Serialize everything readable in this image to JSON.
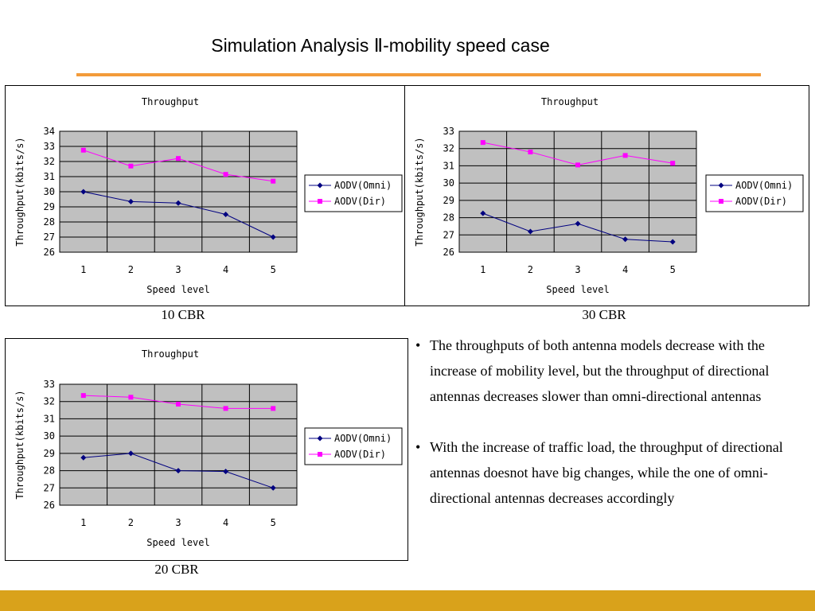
{
  "slide": {
    "title": "Simulation Analysis Ⅱ-mobility speed case",
    "accent_color": "#f39b3a",
    "footer_color": "#d9a21b"
  },
  "bullets": [
    "The throughputs of both antenna models decrease with the increase of mobility level, but the throughput of directional antennas decreases slower than omni-directional antennas",
    "With the increase of traffic load, the throughput of directional antennas doesnot have big changes, while the one of omni-directional antennas decreases accordingly"
  ],
  "chart_data": [
    {
      "type": "line",
      "caption": "10 CBR",
      "title": "Throughput",
      "xlabel": "Speed level",
      "ylabel": "Throughput(kbits/s)",
      "categories": [
        "1",
        "2",
        "3",
        "4",
        "5"
      ],
      "ylim": [
        26,
        34
      ],
      "yticks": [
        "26",
        "27",
        "28",
        "29",
        "30",
        "31",
        "32",
        "33",
        "34"
      ],
      "grid": true,
      "legend": "right",
      "series": [
        {
          "name": "AODV(Omni)",
          "color": "#000080",
          "marker": "diamond",
          "values": [
            30.0,
            29.35,
            29.25,
            28.5,
            27.0
          ]
        },
        {
          "name": "AODV(Dir)",
          "color": "#ff00ff",
          "marker": "square",
          "values": [
            32.75,
            31.7,
            32.2,
            31.15,
            30.7
          ]
        }
      ]
    },
    {
      "type": "line",
      "caption": "30 CBR",
      "title": "Throughput",
      "xlabel": "Speed level",
      "ylabel": "Throughput(kbits/s)",
      "categories": [
        "1",
        "2",
        "3",
        "4",
        "5"
      ],
      "ylim": [
        26,
        33
      ],
      "yticks": [
        "26",
        "27",
        "28",
        "29",
        "30",
        "31",
        "32",
        "33"
      ],
      "grid": true,
      "legend": "right",
      "series": [
        {
          "name": "AODV(Omni)",
          "color": "#000080",
          "marker": "diamond",
          "values": [
            28.25,
            27.2,
            27.65,
            26.75,
            26.6
          ]
        },
        {
          "name": "AODV(Dir)",
          "color": "#ff00ff",
          "marker": "square",
          "values": [
            32.35,
            31.8,
            31.05,
            31.6,
            31.15
          ]
        }
      ]
    },
    {
      "type": "line",
      "caption": "20 CBR",
      "title": "Throughput",
      "xlabel": "Speed level",
      "ylabel": "Throughput(kbits/s)",
      "categories": [
        "1",
        "2",
        "3",
        "4",
        "5"
      ],
      "ylim": [
        26,
        33
      ],
      "yticks": [
        "26",
        "27",
        "28",
        "29",
        "30",
        "31",
        "32",
        "33"
      ],
      "grid": true,
      "legend": "right",
      "series": [
        {
          "name": "AODV(Omni)",
          "color": "#000080",
          "marker": "diamond",
          "values": [
            28.75,
            29.0,
            28.0,
            27.95,
            27.0
          ]
        },
        {
          "name": "AODV(Dir)",
          "color": "#ff00ff",
          "marker": "square",
          "values": [
            32.35,
            32.25,
            31.85,
            31.6,
            31.6
          ]
        }
      ]
    }
  ]
}
